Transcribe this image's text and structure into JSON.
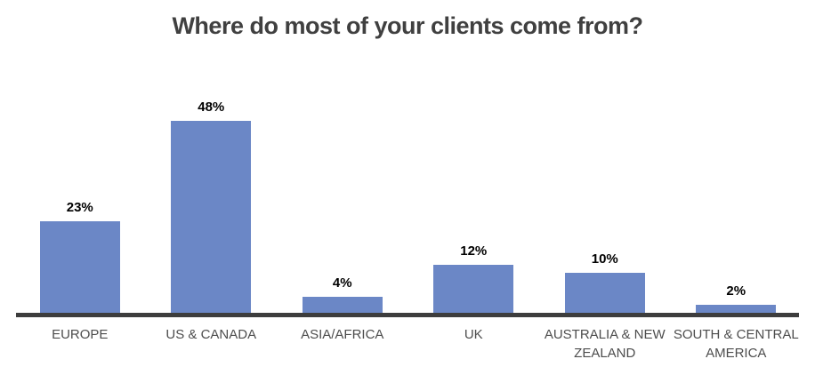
{
  "chart_data": {
    "type": "bar",
    "title": "Where do most of your clients come from?",
    "categories": [
      "EUROPE",
      "US & CANADA",
      "ASIA/AFRICA",
      "UK",
      "AUSTRALIA & NEW ZEALAND",
      "SOUTH & CENTRAL AMERICA"
    ],
    "values": [
      23,
      48,
      4,
      12,
      10,
      2
    ],
    "value_labels": [
      "23%",
      "48%",
      "4%",
      "12%",
      "10%",
      "2%"
    ],
    "unit": "%",
    "xlabel": "",
    "ylabel": "",
    "ylim": [
      0,
      50
    ],
    "grid": "off",
    "legend": "none",
    "colors": {
      "bar": "#6b87c6",
      "axis_line": "#3d3d3d",
      "title_text": "#404040",
      "value_label_text": "#000000",
      "category_label_text": "#4d4d4d",
      "background": "#ffffff"
    }
  }
}
